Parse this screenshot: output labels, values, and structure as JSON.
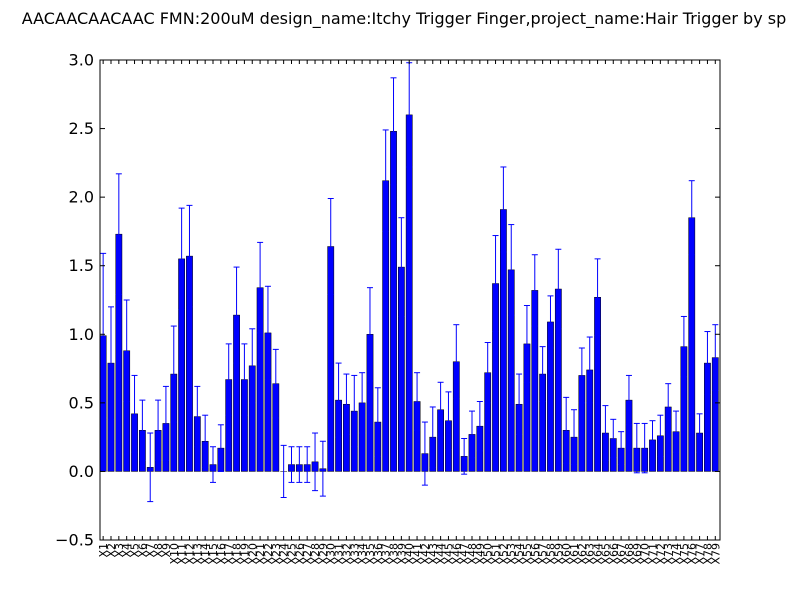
{
  "chart_data": {
    "type": "bar",
    "title": "AACAACAACAAC  FMN:200uM  design_name:Itchy Trigger Finger,project_name:Hair Trigger by sp",
    "xlabel": "",
    "ylabel": "",
    "ylim": [
      -0.5,
      3.0
    ],
    "yticks": [
      "−0.5",
      "0.0",
      "0.5",
      "1.0",
      "1.5",
      "2.0",
      "2.5",
      "3.0"
    ],
    "grid": false,
    "bar_color": "#0000ff",
    "error_color": "#0000ff",
    "categories": [
      "X1",
      "X2",
      "X3",
      "X4",
      "X5",
      "X6",
      "X7",
      "X8",
      "X9",
      "X10",
      "X11",
      "X12",
      "X13",
      "X14",
      "X15",
      "X16",
      "X17",
      "X18",
      "X19",
      "X20",
      "X21",
      "X22",
      "X23",
      "X24",
      "X25",
      "X26",
      "X27",
      "X28",
      "X29",
      "X30",
      "X31",
      "X32",
      "X33",
      "X34",
      "X35",
      "X36",
      "X37",
      "X38",
      "X39",
      "X40",
      "X41",
      "X42",
      "X43",
      "X44",
      "X45",
      "X46",
      "X47",
      "X48",
      "X49",
      "X50",
      "X51",
      "X52",
      "X53",
      "X54",
      "X55",
      "X56",
      "X57",
      "X58",
      "X59",
      "X60",
      "X61",
      "X62",
      "X63",
      "X64",
      "X65",
      "X66",
      "X67",
      "X68",
      "X69",
      "X70",
      "X71",
      "X72",
      "X73",
      "X74",
      "X75",
      "X76",
      "X77",
      "X78",
      "X79"
    ],
    "values": [
      0.99,
      0.79,
      1.73,
      0.88,
      0.42,
      0.3,
      0.03,
      0.3,
      0.35,
      0.71,
      1.55,
      1.57,
      0.4,
      0.22,
      0.05,
      0.17,
      0.67,
      1.14,
      0.67,
      0.77,
      1.34,
      1.01,
      0.64,
      0.0,
      0.05,
      0.05,
      0.05,
      0.07,
      0.02,
      1.64,
      0.52,
      0.49,
      0.44,
      0.5,
      1.0,
      0.36,
      2.12,
      2.48,
      1.49,
      2.6,
      0.51,
      0.13,
      0.25,
      0.45,
      0.37,
      0.8,
      0.11,
      0.27,
      0.33,
      0.72,
      1.37,
      1.91,
      1.47,
      0.49,
      0.93,
      1.32,
      0.71,
      1.09,
      1.33,
      0.3,
      0.25,
      0.7,
      0.74,
      1.27,
      0.28,
      0.24,
      0.17,
      0.52,
      0.17,
      0.17,
      0.23,
      0.26,
      0.47,
      0.29,
      0.91,
      1.85,
      0.28,
      0.79,
      0.83
    ],
    "errors": [
      0.6,
      0.41,
      0.44,
      0.37,
      0.28,
      0.22,
      0.25,
      0.22,
      0.27,
      0.35,
      0.37,
      0.37,
      0.22,
      0.19,
      0.13,
      0.17,
      0.26,
      0.35,
      0.26,
      0.27,
      0.33,
      0.34,
      0.25,
      0.19,
      0.13,
      0.13,
      0.13,
      0.21,
      0.2,
      0.35,
      0.27,
      0.22,
      0.26,
      0.22,
      0.34,
      0.25,
      0.37,
      0.39,
      0.36,
      0.38,
      0.21,
      0.23,
      0.22,
      0.2,
      0.21,
      0.27,
      0.13,
      0.17,
      0.18,
      0.22,
      0.35,
      0.31,
      0.33,
      0.22,
      0.28,
      0.26,
      0.2,
      0.19,
      0.29,
      0.24,
      0.2,
      0.2,
      0.24,
      0.28,
      0.2,
      0.14,
      0.12,
      0.18,
      0.18,
      0.18,
      0.14,
      0.15,
      0.17,
      0.15,
      0.22,
      0.27,
      0.14,
      0.23,
      0.24
    ]
  }
}
